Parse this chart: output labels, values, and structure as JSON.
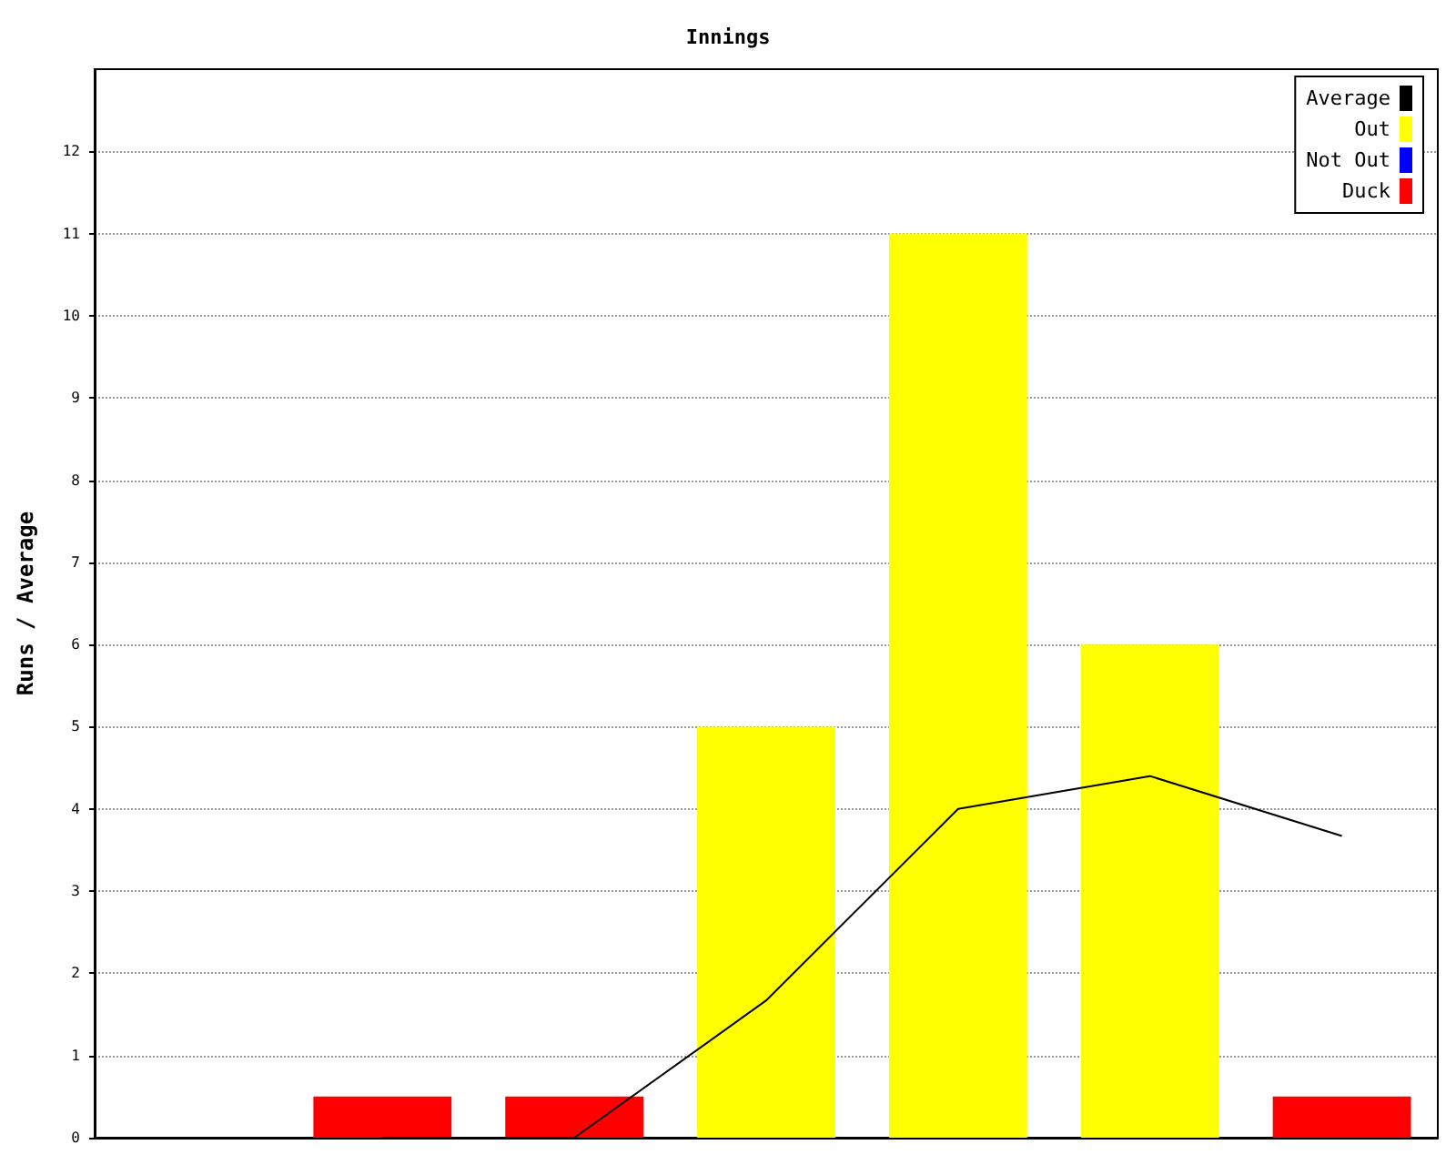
{
  "chart_data": {
    "type": "bar",
    "title": "Innings",
    "ylabel": "Runs / Average",
    "categories": [
      null,
      null,
      null,
      null,
      null,
      null,
      null
    ],
    "stacked": true,
    "series": [
      {
        "name": "Average",
        "type": "line",
        "color": "#000000",
        "values": [
          null,
          0,
          0,
          1.67,
          4,
          4.4,
          3.67
        ]
      },
      {
        "name": "Out",
        "color": "#ffff00",
        "values": [
          null,
          null,
          null,
          5,
          11,
          6,
          null
        ]
      },
      {
        "name": "Not Out",
        "color": "#0000ff",
        "values": [
          null,
          null,
          null,
          null,
          null,
          null,
          null
        ]
      },
      {
        "name": "Duck",
        "color": "#ff0000",
        "values": [
          null,
          0.5,
          0.5,
          null,
          null,
          null,
          0.5
        ]
      }
    ],
    "ylim": [
      0,
      13
    ],
    "yticks": [
      0,
      1,
      2,
      3,
      4,
      5,
      6,
      7,
      8,
      9,
      10,
      11,
      12
    ],
    "grid": "y",
    "legend": "top right",
    "marker": "none",
    "line_style": "solid"
  }
}
